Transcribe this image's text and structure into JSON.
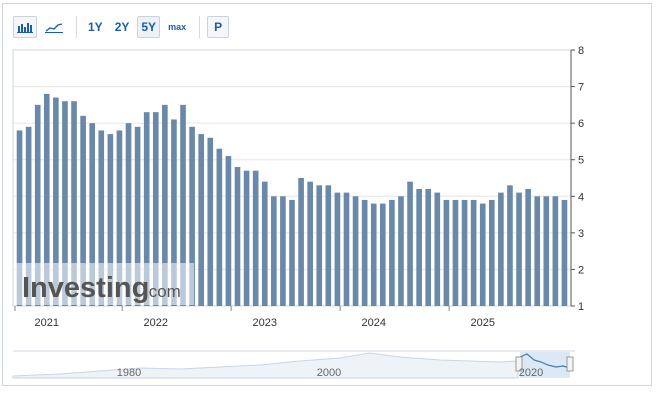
{
  "toolbar": {
    "bar_chart_icon": "bar-chart-icon",
    "line_chart_icon": "line-chart-icon",
    "ranges": [
      "1Y",
      "2Y",
      "5Y",
      "max"
    ],
    "active_range": "5Y",
    "p_label": "P"
  },
  "watermark": {
    "brand": "Investing",
    "suffix": ".com"
  },
  "navigator": {
    "ticks": [
      "1980",
      "2000",
      "2020"
    ]
  },
  "colors": {
    "bar": "#6a88a8",
    "axis": "#333333",
    "grid": "#e6e6e6",
    "accent": "#1a5ea8",
    "nav_fill": "#dbe8f5"
  },
  "chart_data": {
    "type": "bar",
    "x_ticks": [
      "2021",
      "2022",
      "2023",
      "2024",
      "2025"
    ],
    "y_ticks": [
      1,
      2,
      3,
      4,
      5,
      6,
      7,
      8
    ],
    "ylim": [
      1,
      8
    ],
    "values": [
      5.8,
      5.9,
      6.5,
      6.8,
      6.7,
      6.6,
      6.6,
      6.2,
      6.0,
      5.8,
      5.7,
      5.8,
      6.0,
      5.9,
      6.3,
      6.3,
      6.5,
      6.1,
      6.5,
      5.9,
      5.7,
      5.6,
      5.3,
      5.1,
      4.8,
      4.7,
      4.7,
      4.4,
      4.0,
      4.0,
      3.9,
      4.5,
      4.4,
      4.3,
      4.3,
      4.1,
      4.1,
      4.0,
      3.9,
      3.8,
      3.8,
      3.9,
      4.0,
      4.4,
      4.2,
      4.2,
      4.1,
      3.9,
      3.9,
      3.9,
      3.9,
      3.8,
      3.9,
      4.1,
      4.3,
      4.1,
      4.2,
      4.0,
      4.0,
      4.0,
      3.9
    ],
    "grid": true
  }
}
